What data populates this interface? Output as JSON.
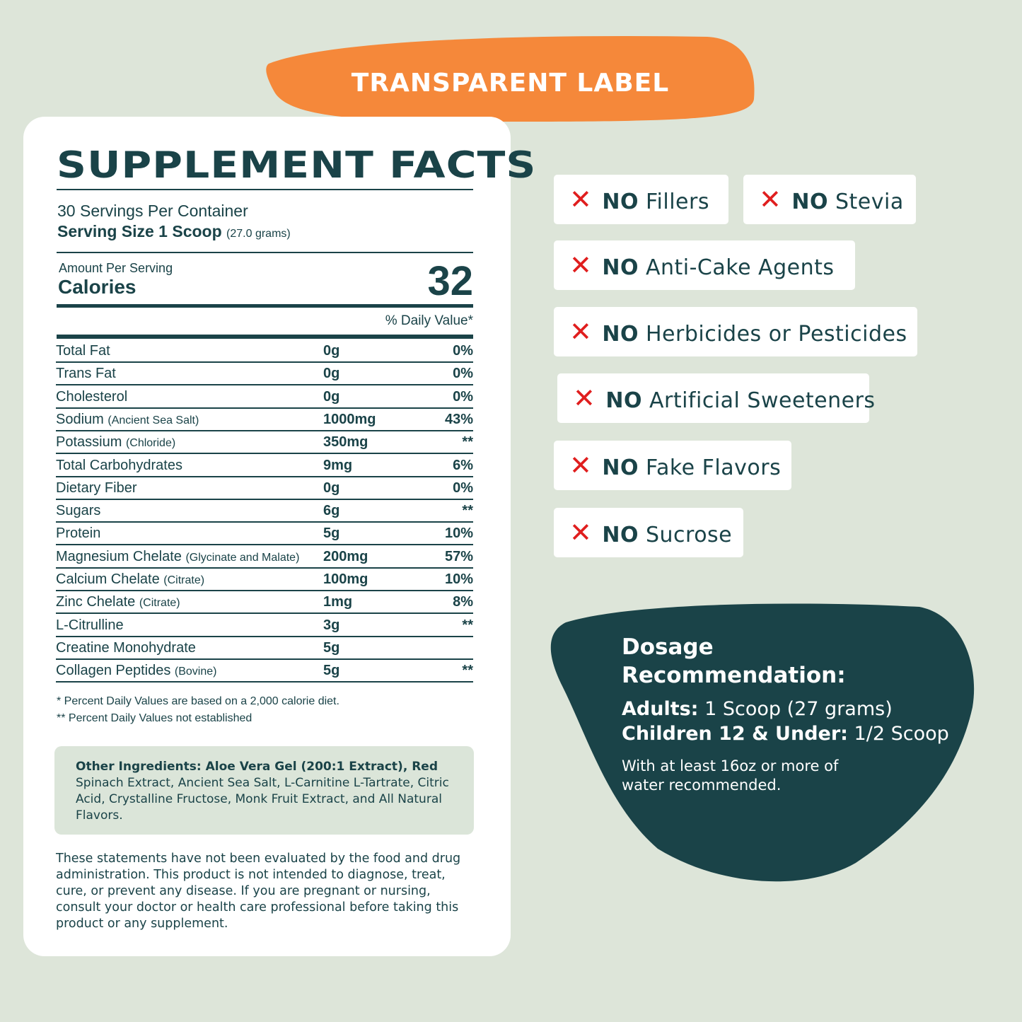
{
  "badge": "TRANSPARENT LABEL",
  "facts": {
    "title": "SUPPLEMENT FACTS",
    "servings": "30 Servings Per Container",
    "serving_size": "Serving Size 1 Scoop",
    "serving_weight": "(27.0 grams)",
    "amount_label": "Amount Per Serving",
    "calories_label": "Calories",
    "calories": 32,
    "dv_header": "% Daily Value*",
    "rows": [
      {
        "name": "Total Fat",
        "amount": "0g",
        "dv": "0%"
      },
      {
        "name": "Trans Fat",
        "amount": "0g",
        "dv": "0%"
      },
      {
        "name": "Cholesterol",
        "amount": "0g",
        "dv": "0%"
      },
      {
        "name": "Sodium",
        "note": "(Ancient Sea Salt)",
        "amount": "1000mg",
        "dv": "43%"
      },
      {
        "name": "Potassium",
        "note": "(Chloride)",
        "amount": "350mg",
        "dv": "**"
      },
      {
        "name": "Total Carbohydrates",
        "amount": "9mg",
        "dv": "6%"
      },
      {
        "name": "Dietary Fiber",
        "amount": "0g",
        "dv": "0%"
      },
      {
        "name": "Sugars",
        "amount": "6g",
        "dv": "**"
      },
      {
        "name": "Protein",
        "amount": "5g",
        "dv": "10%"
      },
      {
        "name": "Magnesium Chelate",
        "note": "(Glycinate and Malate)",
        "amount": "200mg",
        "dv": "57%"
      },
      {
        "name": "Calcium Chelate",
        "note": "(Citrate)",
        "amount": "100mg",
        "dv": "10%"
      },
      {
        "name": "Zinc Chelate",
        "note": "(Citrate)",
        "amount": "1mg",
        "dv": "8%"
      },
      {
        "name": "L-Citrulline",
        "amount": "3g",
        "dv": "**"
      },
      {
        "name": "Creatine Monohydrate",
        "amount": "5g"
      },
      {
        "name": "Collagen Peptides",
        "note": "(Bovine)",
        "amount": "5g",
        "dv": "**"
      }
    ],
    "footnotes": [
      "*  Percent Daily Values are based on a 2,000 calorie diet.",
      "** Percent Daily Values not established"
    ]
  },
  "other_ingredients": {
    "lead": "Other Ingredients: Aloe Vera Gel (200:1 Extract), Red",
    "text": "Spinach Extract, Ancient Sea Salt, L-Carnitine L-Tartrate, Citric Acid, Crystalline Fructose, Monk Fruit Extract, and All Natural Flavors."
  },
  "disclaimer": "These statements have not been evaluated by the food and drug administration. This product is not intended to diagnose, treat, cure, or prevent any disease. If you are pregnant or nursing, consult your doctor or health care professional before taking this product or any supplement.",
  "claims": [
    {
      "prefix": "NO",
      "text": "Fillers"
    },
    {
      "prefix": "NO",
      "text": "Stevia"
    },
    {
      "prefix": "NO",
      "text": "Anti-Cake Agents"
    },
    {
      "prefix": "NO",
      "text": "Herbicides or Pesticides"
    },
    {
      "prefix": "NO",
      "text": "Artificial Sweeteners"
    },
    {
      "prefix": "NO",
      "text": "Fake Flavors"
    },
    {
      "prefix": "NO",
      "text": "Sucrose"
    }
  ],
  "dosage": {
    "title": "Dosage Recommendation:",
    "lines": [
      {
        "label": "Adults:",
        "text": "1 Scoop (27 grams)"
      },
      {
        "label": "Children 12 & Under:",
        "text": "1/2 Scoop"
      }
    ],
    "note": "With at least 16oz or more of water recommended."
  }
}
